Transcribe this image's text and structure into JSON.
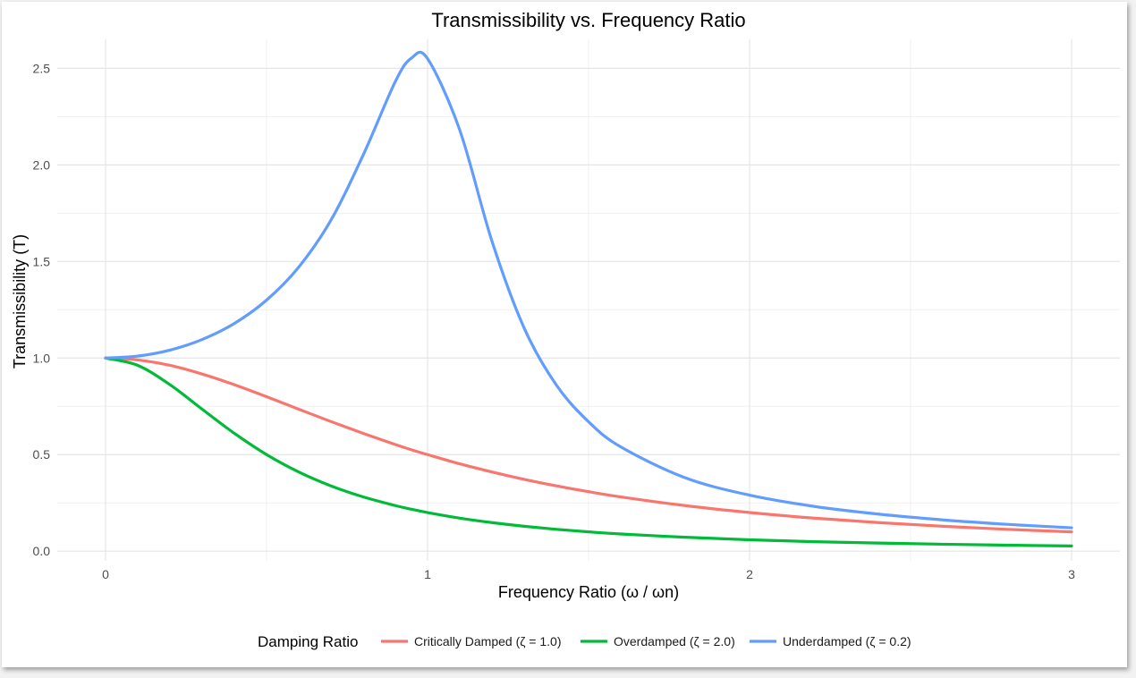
{
  "chart_data": {
    "type": "line",
    "title": "Transmissibility vs. Frequency Ratio",
    "xlabel": "Frequency Ratio (ω / ωn)",
    "ylabel": "Transmissibility (T)",
    "xlim": [
      -0.15,
      3.15
    ],
    "ylim": [
      -0.05,
      2.65
    ],
    "x_ticks": [
      0,
      1,
      2,
      3
    ],
    "x_tick_labels": [
      "0",
      "1",
      "2",
      "3"
    ],
    "y_ticks": [
      0,
      0.5,
      1,
      1.5,
      2,
      2.5
    ],
    "y_tick_labels": [
      "0.0",
      "0.5",
      "1.0",
      "1.5",
      "2.0",
      "2.5"
    ],
    "grid": true,
    "legend_position": "bottom",
    "legend_title": "Damping Ratio",
    "x": [
      0,
      0.1,
      0.2,
      0.3,
      0.4,
      0.5,
      0.6,
      0.7,
      0.8,
      0.9,
      0.95,
      1.0,
      1.1,
      1.2,
      1.3,
      1.4,
      1.5,
      1.6,
      1.8,
      2.0,
      2.2,
      2.4,
      2.6,
      2.8,
      3.0
    ],
    "series": [
      {
        "name": "Critically Damped (ζ = 1.0)",
        "color": "#F8766D",
        "values": [
          1.0,
          0.99,
          0.962,
          0.917,
          0.862,
          0.8,
          0.735,
          0.671,
          0.61,
          0.552,
          0.525,
          0.5,
          0.452,
          0.41,
          0.372,
          0.338,
          0.308,
          0.281,
          0.236,
          0.2,
          0.171,
          0.148,
          0.129,
          0.113,
          0.1
        ]
      },
      {
        "name": "Overdamped (ζ = 2.0)",
        "color": "#00BA38",
        "values": [
          1.0,
          0.962,
          0.862,
          0.735,
          0.61,
          0.5,
          0.41,
          0.338,
          0.281,
          0.236,
          0.217,
          0.2,
          0.171,
          0.148,
          0.129,
          0.113,
          0.1,
          0.089,
          0.072,
          0.059,
          0.049,
          0.042,
          0.036,
          0.031,
          0.027
        ]
      },
      {
        "name": "Underdamped (ζ = 0.2)",
        "color": "#619CFF",
        "values": [
          1.0,
          1.01,
          1.041,
          1.096,
          1.179,
          1.3,
          1.471,
          1.714,
          2.051,
          2.432,
          2.553,
          2.55,
          2.18,
          1.605,
          1.155,
          0.86,
          0.67,
          0.54,
          0.38,
          0.29,
          0.232,
          0.192,
          0.162,
          0.139,
          0.121
        ]
      }
    ]
  }
}
